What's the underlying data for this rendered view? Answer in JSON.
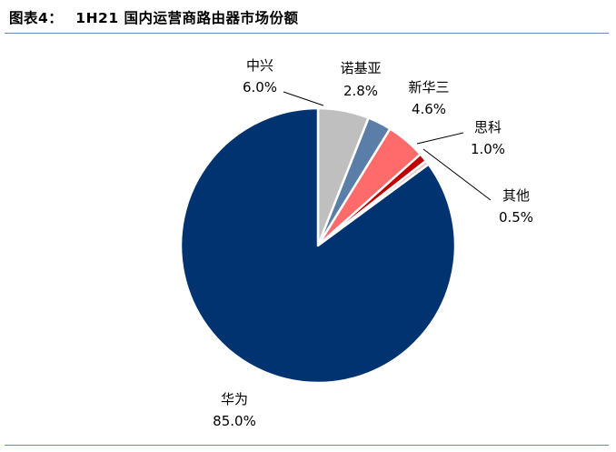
{
  "figure": {
    "label": "图表4：",
    "title": "1H21 国内运营商路由器市场份额"
  },
  "chart_data": {
    "type": "pie",
    "title": "1H21 国内运营商路由器市场份额",
    "unit": "%",
    "start_angle_note": "clockwise from top",
    "slices": [
      {
        "name": "中兴",
        "value": 6.0,
        "label": "6.0%",
        "color": "#bfbfbf"
      },
      {
        "name": "诺基亚",
        "value": 2.8,
        "label": "2.8%",
        "color": "#5b7ea8"
      },
      {
        "name": "新华三",
        "value": 4.6,
        "label": "4.6%",
        "color": "#ff6b6b"
      },
      {
        "name": "思科",
        "value": 1.0,
        "label": "1.0%",
        "color": "#c00000"
      },
      {
        "name": "其他",
        "value": 0.5,
        "label": "0.5%",
        "color": "#e8cbc8"
      },
      {
        "name": "华为",
        "value": 85.0,
        "label": "85.0%",
        "color": "#003370"
      }
    ]
  }
}
